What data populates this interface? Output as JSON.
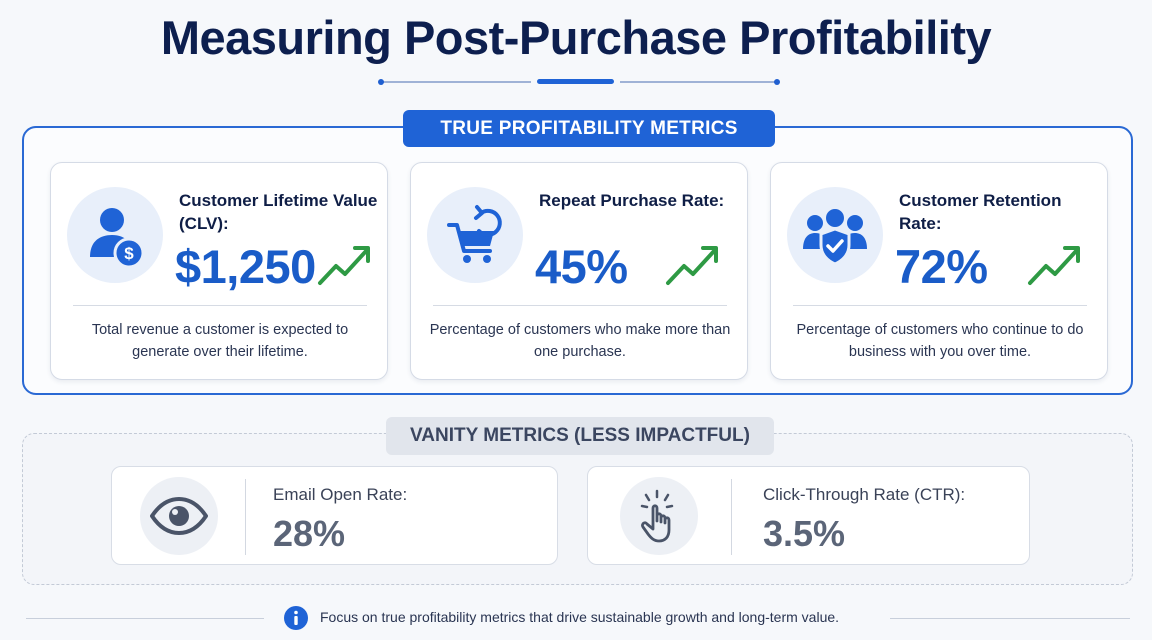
{
  "title": "Measuring Post-Purchase Profitability",
  "true_section": {
    "heading": "TRUE PROFITABILITY METRICS",
    "cards": [
      {
        "icon": "customer-dollar-icon",
        "label": "Customer Lifetime Value (CLV):",
        "value": "$1,250",
        "trend": "up-trend-icon",
        "description": "Total revenue a customer is expected to generate over their lifetime."
      },
      {
        "icon": "cart-repeat-icon",
        "label": "Repeat Purchase Rate:",
        "value": "45%",
        "trend": "up-trend-icon",
        "description": "Percentage of customers who make more than one purchase."
      },
      {
        "icon": "group-shield-icon",
        "label": "Customer Retention Rate:",
        "value": "72%",
        "trend": "up-trend-icon",
        "description": "Percentage of customers who continue to do business with you over time."
      }
    ]
  },
  "vanity_section": {
    "heading": "VANITY METRICS (LESS IMPACTFUL)",
    "cards": [
      {
        "icon": "eye-icon",
        "label": "Email Open Rate:",
        "value": "28%"
      },
      {
        "icon": "click-hand-icon",
        "label": "Click-Through Rate (CTR):",
        "value": "3.5%"
      }
    ]
  },
  "footer": {
    "icon": "info-icon",
    "text": "Focus on true profitability metrics that drive sustainable growth and long-term value."
  },
  "colors": {
    "primary": "#1f63d6",
    "title": "#0d1f4f",
    "trend": "#2e9a44",
    "vanity_text": "#5b6578"
  }
}
